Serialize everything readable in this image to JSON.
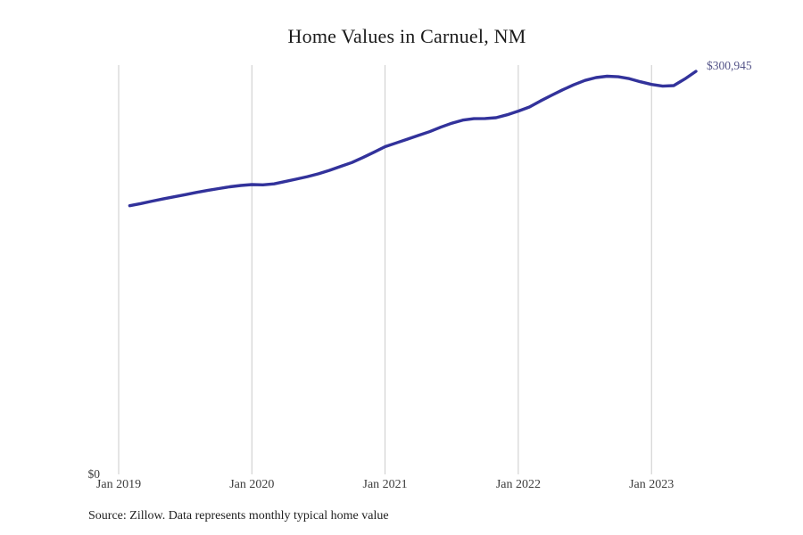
{
  "page": {
    "title": "Home Values in Carnuel, NM",
    "source_note": "Source: Zillow. Data represents monthly typical home value"
  },
  "chart_data": {
    "type": "line",
    "title": "Home Values in Carnuel, NM",
    "series_name": "Monthly typical home value",
    "x": [
      "Feb 2019",
      "Mar 2019",
      "Apr 2019",
      "May 2019",
      "Jun 2019",
      "Jul 2019",
      "Aug 2019",
      "Sep 2019",
      "Oct 2019",
      "Nov 2019",
      "Dec 2019",
      "Jan 2020",
      "Feb 2020",
      "Mar 2020",
      "Apr 2020",
      "May 2020",
      "Jun 2020",
      "Jul 2020",
      "Aug 2020",
      "Sep 2020",
      "Oct 2020",
      "Nov 2020",
      "Dec 2020",
      "Jan 2021",
      "Feb 2021",
      "Mar 2021",
      "Apr 2021",
      "May 2021",
      "Jun 2021",
      "Jul 2021",
      "Aug 2021",
      "Sep 2021",
      "Oct 2021",
      "Nov 2021",
      "Dec 2021",
      "Jan 2022",
      "Feb 2022",
      "Mar 2022",
      "Apr 2022",
      "May 2022",
      "Jun 2022",
      "Jul 2022",
      "Aug 2022",
      "Sep 2022",
      "Oct 2022",
      "Nov 2022",
      "Dec 2022",
      "Jan 2023",
      "Feb 2023",
      "Mar 2023",
      "Apr 2023",
      "May 2023"
    ],
    "values": [
      200800,
      202400,
      204200,
      205900,
      207500,
      209100,
      210700,
      212200,
      213600,
      214900,
      215900,
      216600,
      216400,
      217100,
      218800,
      220600,
      222500,
      224600,
      227200,
      230100,
      233000,
      236700,
      240700,
      244800,
      247600,
      250400,
      253200,
      256000,
      259300,
      262300,
      264600,
      265700,
      265800,
      266400,
      268600,
      271300,
      274400,
      278900,
      283100,
      287200,
      290900,
      294200,
      296300,
      297300,
      296900,
      295500,
      293200,
      291200,
      289900,
      290300,
      295200,
      300945
    ],
    "x_ticks": [
      "Jan 2019",
      "Jan 2020",
      "Jan 2021",
      "Jan 2022",
      "Jan 2023"
    ],
    "y_zero_label": "$0",
    "end_label": "$300,945",
    "end_value": 300945,
    "xlabel": "",
    "ylabel": "",
    "ylim": [
      0,
      310000
    ],
    "grid": "vertical-only",
    "legend": "none",
    "line_color": "#32329B",
    "grid_color": "#CBCBCB",
    "end_label_color": "#555589"
  }
}
